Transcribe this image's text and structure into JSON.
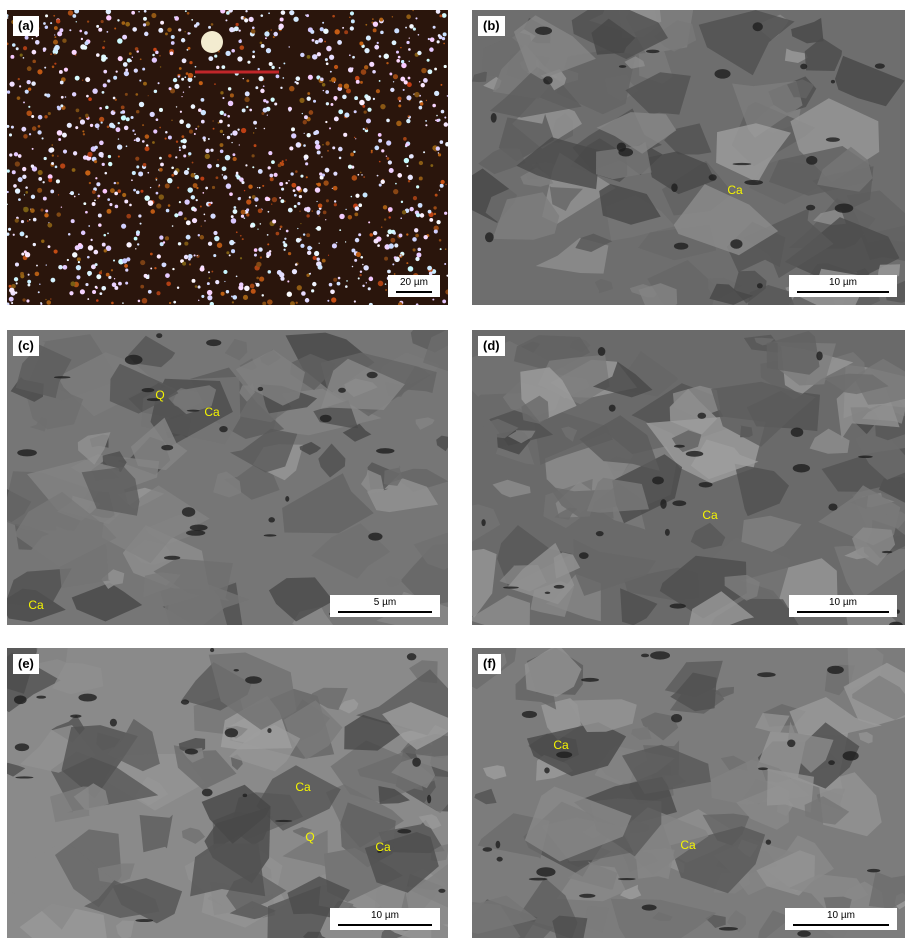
{
  "panels": [
    {
      "label": "(a)",
      "scale_bar": "20 µm",
      "annotations": []
    },
    {
      "label": "(b)",
      "scale_bar": "10 µm",
      "annotations": [
        "Ca"
      ]
    },
    {
      "label": "(c)",
      "scale_bar": "5 µm",
      "annotations": [
        "Q",
        "Ca",
        "Ca"
      ]
    },
    {
      "label": "(d)",
      "scale_bar": "10 µm",
      "annotations": [
        "Ca"
      ]
    },
    {
      "label": "(e)",
      "scale_bar": "10 µm",
      "annotations": [
        "Ca",
        "Q",
        "Ca"
      ]
    },
    {
      "label": "(f)",
      "scale_bar": "10 µm",
      "annotations": [
        "Ca",
        "Ca"
      ]
    }
  ]
}
